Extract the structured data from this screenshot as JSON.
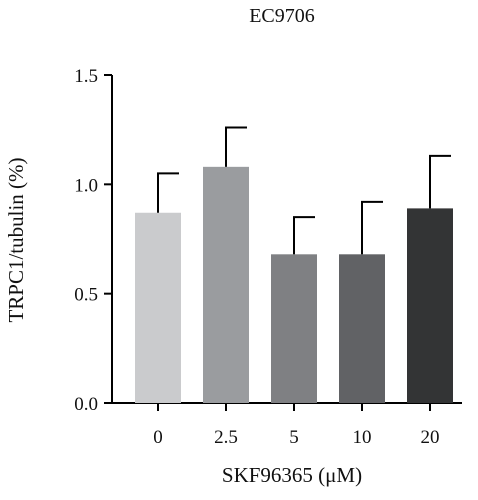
{
  "chart_data": {
    "type": "bar",
    "title": "EC9706",
    "xlabel": "SKF96365 (μM)",
    "ylabel": "TRPC1/tubulin (%)",
    "categories": [
      "0",
      "2.5",
      "5",
      "10",
      "20"
    ],
    "values": [
      0.87,
      1.08,
      0.68,
      0.68,
      0.89
    ],
    "error_plus": [
      0.18,
      0.18,
      0.17,
      0.24,
      0.24
    ],
    "yticks": [
      "0.0",
      "0.5",
      "1.0",
      "1.5"
    ],
    "ylim": [
      0,
      1.5
    ],
    "grid": false,
    "legend": "none",
    "bar_colors": [
      "#cacbcd",
      "#9a9c9f",
      "#7f8083",
      "#616265",
      "#333435"
    ]
  }
}
